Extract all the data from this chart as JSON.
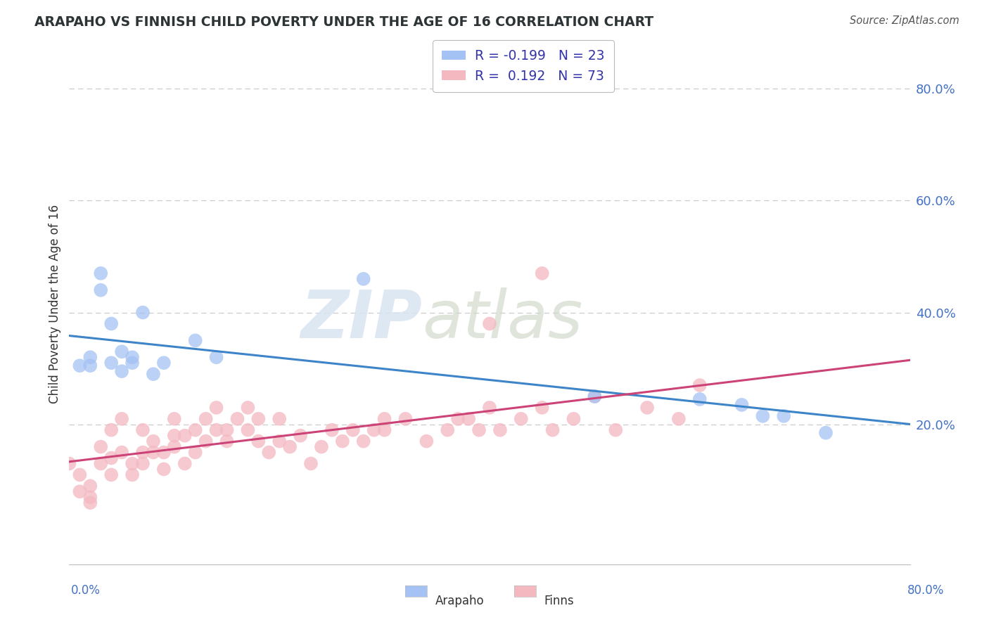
{
  "title": "ARAPAHO VS FINNISH CHILD POVERTY UNDER THE AGE OF 16 CORRELATION CHART",
  "source": "Source: ZipAtlas.com",
  "ylabel": "Child Poverty Under the Age of 16",
  "y_tick_positions": [
    0.2,
    0.4,
    0.6,
    0.8
  ],
  "xlim": [
    0.0,
    0.8
  ],
  "ylim": [
    -0.05,
    0.88
  ],
  "arapaho_color": "#a4c2f4",
  "finns_color": "#f4b8c1",
  "arapaho_line_color": "#3d85c8",
  "finns_line_color": "#cc4477",
  "legend_label_a": "R = -0.199   N = 23",
  "legend_label_f": "R =  0.192   N = 73",
  "legend_text_color": "#3333aa",
  "ytick_color": "#4472c4",
  "xtick_color": "#4472c4",
  "watermark_text": "ZIPatlas",
  "arapaho_x": [
    0.01,
    0.02,
    0.02,
    0.03,
    0.03,
    0.04,
    0.04,
    0.05,
    0.05,
    0.06,
    0.06,
    0.07,
    0.08,
    0.09,
    0.12,
    0.14,
    0.28,
    0.5,
    0.6,
    0.64,
    0.66,
    0.68,
    0.72
  ],
  "arapaho_y": [
    0.305,
    0.305,
    0.32,
    0.47,
    0.44,
    0.31,
    0.38,
    0.33,
    0.295,
    0.31,
    0.32,
    0.4,
    0.29,
    0.31,
    0.35,
    0.32,
    0.46,
    0.25,
    0.245,
    0.235,
    0.215,
    0.215,
    0.185
  ],
  "finns_x": [
    0.0,
    0.01,
    0.01,
    0.02,
    0.02,
    0.02,
    0.03,
    0.03,
    0.04,
    0.04,
    0.04,
    0.05,
    0.05,
    0.06,
    0.06,
    0.07,
    0.07,
    0.07,
    0.08,
    0.08,
    0.09,
    0.09,
    0.1,
    0.1,
    0.1,
    0.11,
    0.11,
    0.12,
    0.12,
    0.13,
    0.13,
    0.14,
    0.14,
    0.15,
    0.15,
    0.16,
    0.17,
    0.17,
    0.18,
    0.18,
    0.19,
    0.2,
    0.2,
    0.21,
    0.22,
    0.23,
    0.24,
    0.25,
    0.26,
    0.27,
    0.28,
    0.29,
    0.3,
    0.3,
    0.32,
    0.34,
    0.36,
    0.37,
    0.38,
    0.39,
    0.4,
    0.41,
    0.43,
    0.45,
    0.46,
    0.48,
    0.5,
    0.52,
    0.55,
    0.58,
    0.6,
    0.45,
    0.4
  ],
  "finns_y": [
    0.13,
    0.11,
    0.08,
    0.09,
    0.06,
    0.07,
    0.16,
    0.13,
    0.19,
    0.11,
    0.14,
    0.21,
    0.15,
    0.11,
    0.13,
    0.19,
    0.15,
    0.13,
    0.15,
    0.17,
    0.12,
    0.15,
    0.18,
    0.21,
    0.16,
    0.18,
    0.13,
    0.19,
    0.15,
    0.21,
    0.17,
    0.23,
    0.19,
    0.19,
    0.17,
    0.21,
    0.19,
    0.23,
    0.21,
    0.17,
    0.15,
    0.17,
    0.21,
    0.16,
    0.18,
    0.13,
    0.16,
    0.19,
    0.17,
    0.19,
    0.17,
    0.19,
    0.19,
    0.21,
    0.21,
    0.17,
    0.19,
    0.21,
    0.21,
    0.19,
    0.23,
    0.19,
    0.21,
    0.23,
    0.19,
    0.21,
    0.25,
    0.19,
    0.23,
    0.21,
    0.27,
    0.47,
    0.38
  ]
}
